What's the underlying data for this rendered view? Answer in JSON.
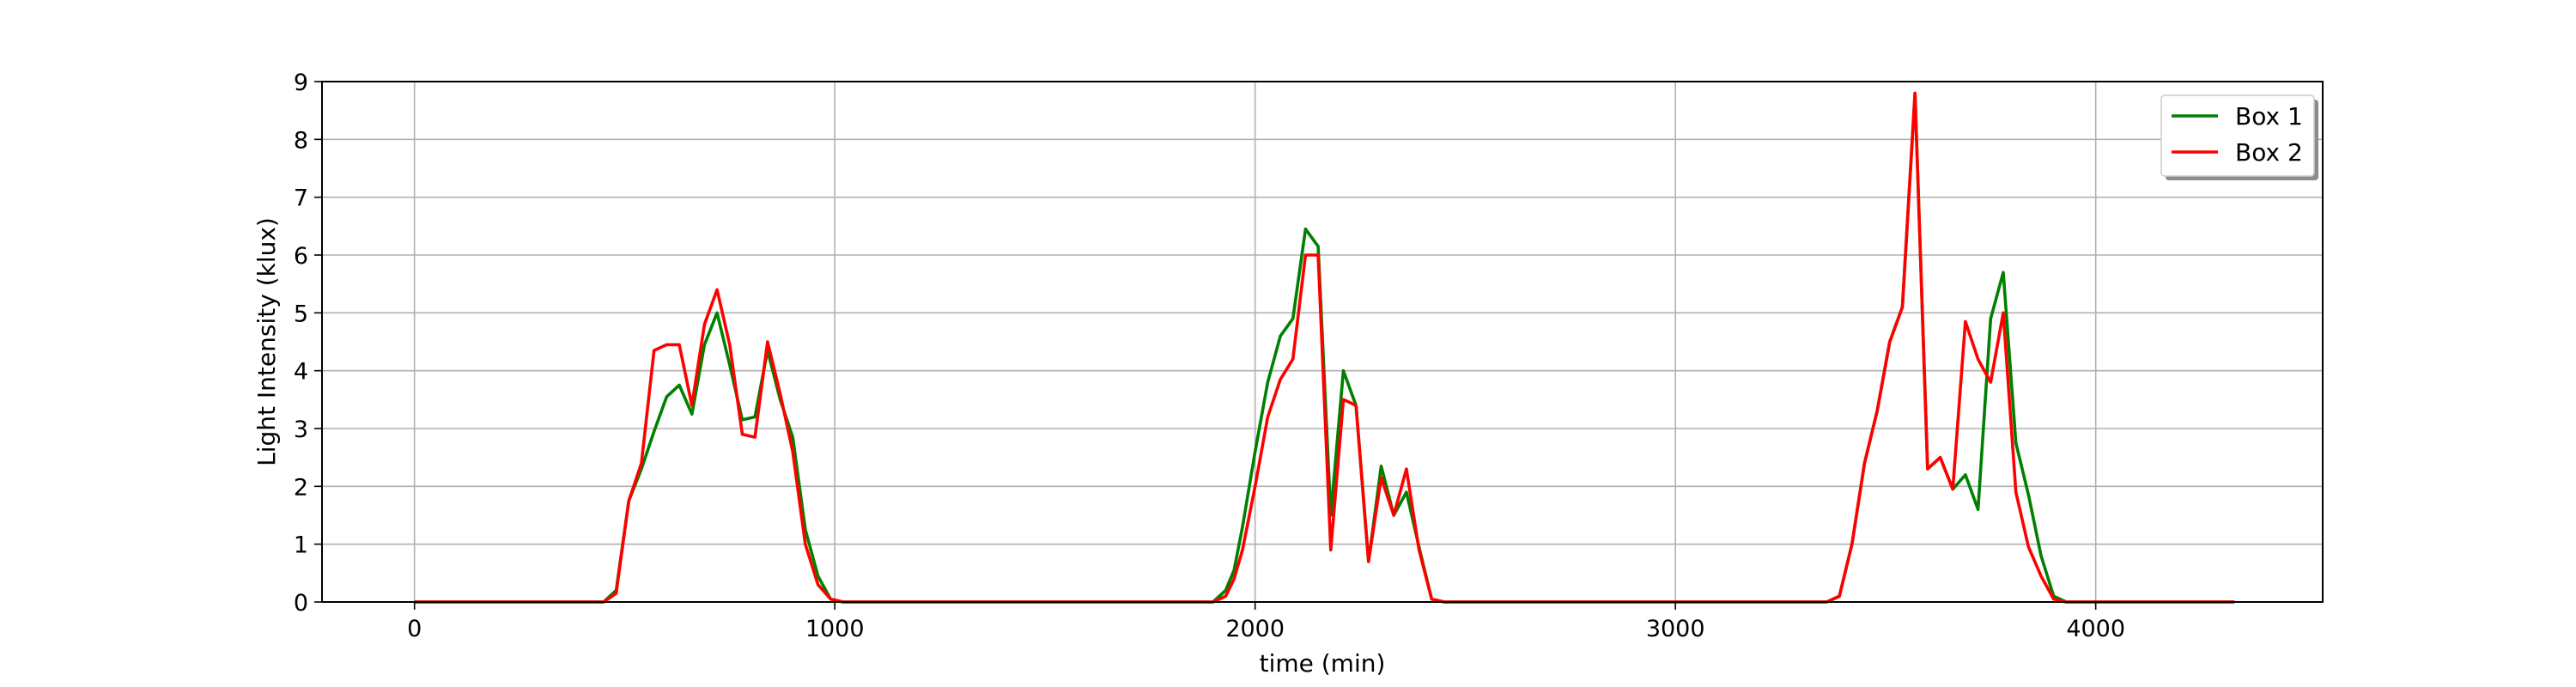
{
  "chart_data": {
    "type": "line",
    "xlabel": "time (min)",
    "ylabel": "Light Intensity (klux)",
    "xlim": [
      -220,
      4540
    ],
    "ylim": [
      0,
      9
    ],
    "xticks": [
      0,
      1000,
      2000,
      3000,
      4000
    ],
    "yticks": [
      0,
      1,
      2,
      3,
      4,
      5,
      6,
      7,
      8,
      9
    ],
    "grid": true,
    "legend_position": "top-right",
    "series": [
      {
        "name": "Box 1",
        "color": "#008000",
        "x": [
          0,
          450,
          480,
          510,
          540,
          570,
          600,
          630,
          660,
          690,
          720,
          750,
          780,
          810,
          840,
          870,
          900,
          930,
          960,
          990,
          1020,
          1900,
          1930,
          1950,
          1970,
          2000,
          2030,
          2060,
          2090,
          2120,
          2150,
          2180,
          2210,
          2240,
          2270,
          2300,
          2330,
          2360,
          2390,
          2420,
          2450,
          2480,
          3360,
          3390,
          3420,
          3450,
          3480,
          3510,
          3540,
          3570,
          3600,
          3630,
          3660,
          3690,
          3720,
          3750,
          3780,
          3810,
          3840,
          3870,
          3900,
          3930,
          4330
        ],
        "y": [
          0,
          0,
          0.2,
          1.75,
          2.3,
          2.95,
          3.55,
          3.75,
          3.25,
          4.45,
          5.0,
          4.1,
          3.15,
          3.2,
          4.35,
          3.5,
          2.85,
          1.25,
          0.45,
          0.05,
          0,
          0,
          0.2,
          0.55,
          1.3,
          2.6,
          3.8,
          4.6,
          4.9,
          6.45,
          6.15,
          1.5,
          4.0,
          3.4,
          0.7,
          2.35,
          1.5,
          1.9,
          0.95,
          0.05,
          0,
          0,
          0,
          0.1,
          1.0,
          2.4,
          3.3,
          4.5,
          5.1,
          8.8,
          2.3,
          2.5,
          1.95,
          2.2,
          1.6,
          4.9,
          5.7,
          2.75,
          1.85,
          0.8,
          0.1,
          0,
          0
        ]
      },
      {
        "name": "Box 2",
        "color": "#ff0000",
        "x": [
          0,
          450,
          480,
          510,
          540,
          570,
          600,
          630,
          660,
          690,
          720,
          750,
          780,
          810,
          840,
          870,
          900,
          930,
          960,
          990,
          1020,
          1900,
          1930,
          1950,
          1970,
          2000,
          2030,
          2060,
          2090,
          2120,
          2150,
          2180,
          2210,
          2240,
          2270,
          2300,
          2330,
          2360,
          2390,
          2420,
          2450,
          2480,
          3360,
          3390,
          3420,
          3450,
          3480,
          3510,
          3540,
          3570,
          3600,
          3630,
          3660,
          3690,
          3720,
          3750,
          3780,
          3810,
          3840,
          3870,
          3900,
          3930,
          4330
        ],
        "y": [
          0,
          0,
          0.15,
          1.75,
          2.4,
          4.35,
          4.45,
          4.45,
          3.4,
          4.8,
          5.4,
          4.45,
          2.9,
          2.85,
          4.5,
          3.6,
          2.6,
          1.0,
          0.3,
          0.05,
          0,
          0,
          0.1,
          0.4,
          0.9,
          2.0,
          3.2,
          3.85,
          4.2,
          6.0,
          6.0,
          0.9,
          3.5,
          3.4,
          0.7,
          2.15,
          1.5,
          2.3,
          0.9,
          0.05,
          0,
          0,
          0,
          0.1,
          1.0,
          2.4,
          3.3,
          4.5,
          5.1,
          8.8,
          2.3,
          2.5,
          1.95,
          4.85,
          4.2,
          3.8,
          5.0,
          1.9,
          0.95,
          0.45,
          0.05,
          0,
          0
        ]
      }
    ]
  }
}
